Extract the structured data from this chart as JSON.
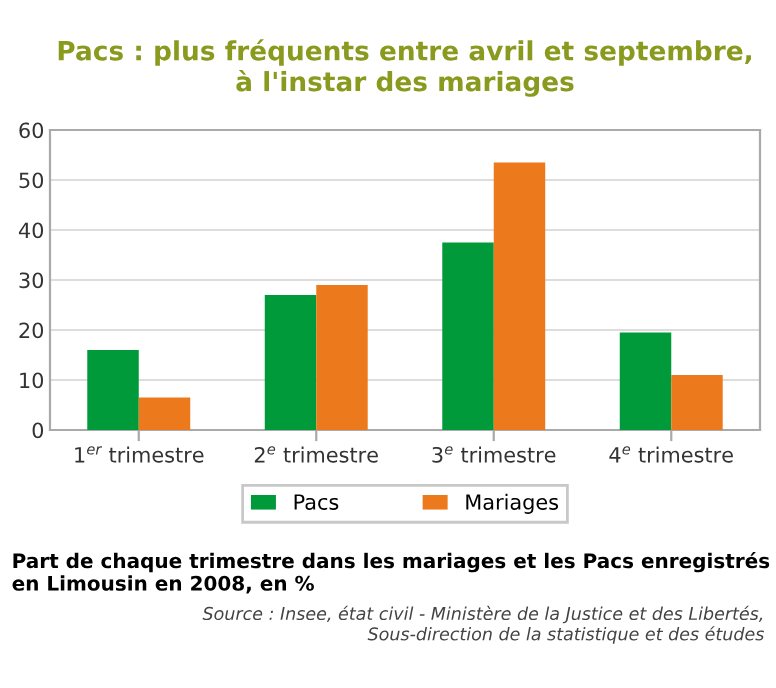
{
  "chart_data": {
    "type": "bar",
    "title": "Pacs : plus fréquents entre avril et septembre,\nà l'instar des mariages",
    "categories": [
      "1$^{er}$ trimestre",
      "2$^{e}$ trimestre",
      "3$^{e}$ trimestre",
      "4$^{e}$ trimestre"
    ],
    "series": [
      {
        "name": "Pacs",
        "color": "#009a3a",
        "values": [
          16,
          27,
          37.5,
          19.5
        ]
      },
      {
        "name": "Mariages",
        "color": "#ec7a1c",
        "values": [
          6.5,
          29,
          53.5,
          11
        ]
      }
    ],
    "ylim": [
      0,
      60
    ],
    "yticks": [
      0,
      10,
      20,
      30,
      40,
      50,
      60
    ],
    "grid": "y",
    "legend": "bottom",
    "annotations": [
      "Part de chaque trimestre dans les mariages et les Pacs enregistrés en Limousin en 2008, en %",
      "Source : Insee, état civil - Ministère de la Justice et des Libertés,\nSous-direction de la statistique et des études"
    ]
  }
}
